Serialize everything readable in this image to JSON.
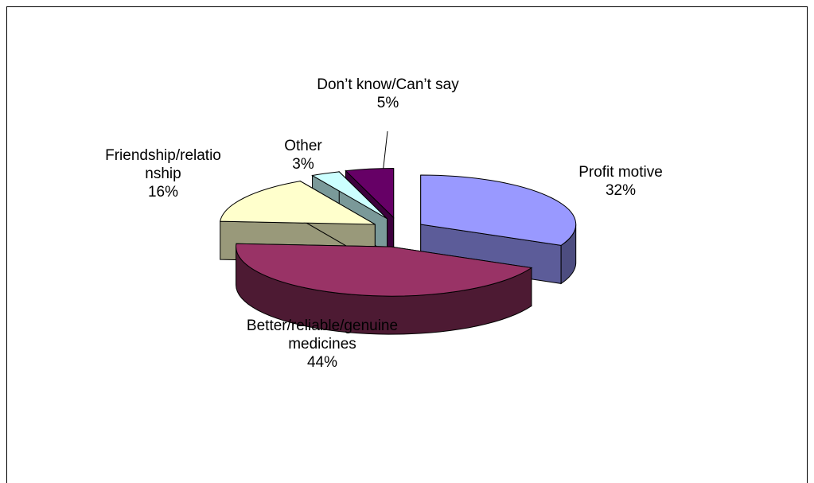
{
  "chart_data": {
    "type": "pie3d",
    "categories": [
      "Profit motive",
      "Better/reliable/genuine medicines",
      "Friendship/relationship",
      "Other",
      "Don’t know/Can’t say"
    ],
    "values": [
      32,
      44,
      16,
      3,
      5
    ],
    "value_labels": [
      "32%",
      "44%",
      "16%",
      "3%",
      "5%"
    ],
    "colors": [
      "#9999ff",
      "#993366",
      "#ffffcc",
      "#ccffff",
      "#660066"
    ]
  }
}
